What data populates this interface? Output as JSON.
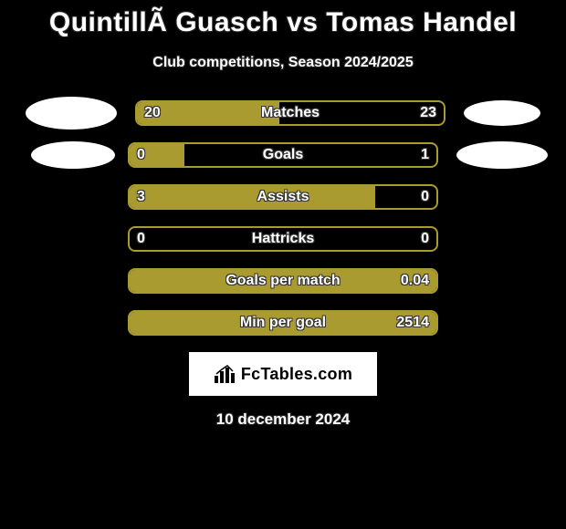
{
  "colors": {
    "background": "#000000",
    "accent": "#a99b2f",
    "text": "#ffffff",
    "logo_bg": "#ffffff",
    "logo_text": "#000000"
  },
  "header": {
    "title": "QuintillÃ  Guasch vs Tomas Handel",
    "subtitle": "Club competitions, Season 2024/2025"
  },
  "stats": [
    {
      "label": "Matches",
      "left_value": "20",
      "right_value": "23",
      "left_pct": 46.5,
      "right_pct": 53.5,
      "has_left_ellipse": true,
      "has_right_ellipse": true
    },
    {
      "label": "Goals",
      "left_value": "0",
      "right_value": "1",
      "left_pct": 18,
      "right_pct": 82,
      "has_left_ellipse": true,
      "has_right_ellipse": true
    },
    {
      "label": "Assists",
      "left_value": "3",
      "right_value": "0",
      "left_pct": 80,
      "right_pct": 20,
      "has_left_ellipse": false,
      "has_right_ellipse": false
    },
    {
      "label": "Hattricks",
      "left_value": "0",
      "right_value": "0",
      "left_pct": 0,
      "right_pct": 0,
      "has_left_ellipse": false,
      "has_right_ellipse": false
    },
    {
      "label": "Goals per match",
      "left_value": "",
      "right_value": "0.04",
      "left_pct": 0,
      "right_pct": 100,
      "has_left_ellipse": false,
      "has_right_ellipse": false
    },
    {
      "label": "Min per goal",
      "left_value": "",
      "right_value": "2514",
      "left_pct": 0,
      "right_pct": 100,
      "has_left_ellipse": false,
      "has_right_ellipse": false
    }
  ],
  "footer": {
    "logo_text": "FcTables.com",
    "date": "10 december 2024"
  },
  "typography": {
    "title_fontsize": 30,
    "subtitle_fontsize": 16,
    "bar_label_fontsize": 16,
    "date_fontsize": 17
  }
}
